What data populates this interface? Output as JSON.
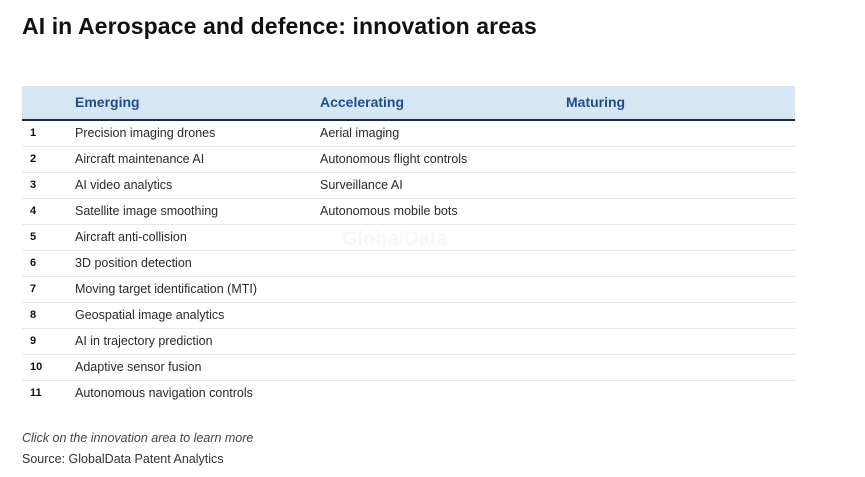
{
  "title": "AI in Aerospace and defence: innovation areas",
  "chart_data": {
    "type": "table",
    "columns": [
      "Emerging",
      "Accelerating",
      "Maturing"
    ],
    "rows": [
      {
        "rank": "1",
        "emerging": "Precision imaging drones",
        "accelerating": "Aerial imaging",
        "maturing": ""
      },
      {
        "rank": "2",
        "emerging": "Aircraft maintenance AI",
        "accelerating": "Autonomous flight controls",
        "maturing": ""
      },
      {
        "rank": "3",
        "emerging": "AI video analytics",
        "accelerating": "Surveillance AI",
        "maturing": ""
      },
      {
        "rank": "4",
        "emerging": "Satellite image smoothing",
        "accelerating": "Autonomous mobile bots",
        "maturing": ""
      },
      {
        "rank": "5",
        "emerging": "Aircraft anti-collision",
        "accelerating": "",
        "maturing": ""
      },
      {
        "rank": "6",
        "emerging": "3D position detection",
        "accelerating": "",
        "maturing": ""
      },
      {
        "rank": "7",
        "emerging": "Moving target identification (MTI)",
        "accelerating": "",
        "maturing": ""
      },
      {
        "rank": "8",
        "emerging": "Geospatial image analytics",
        "accelerating": "",
        "maturing": ""
      },
      {
        "rank": "9",
        "emerging": "AI in trajectory prediction",
        "accelerating": "",
        "maturing": ""
      },
      {
        "rank": "10",
        "emerging": "Adaptive sensor fusion",
        "accelerating": "",
        "maturing": ""
      },
      {
        "rank": "11",
        "emerging": "Autonomous navigation controls",
        "accelerating": "",
        "maturing": ""
      }
    ]
  },
  "watermark": "GlobalData",
  "note": "Click on the innovation area to learn more",
  "source": "Source: GlobalData Patent Analytics",
  "colors": {
    "header_bg": "#d6e6f5",
    "header_text": "#1f4e8c",
    "header_rule": "#1d2a3a"
  }
}
